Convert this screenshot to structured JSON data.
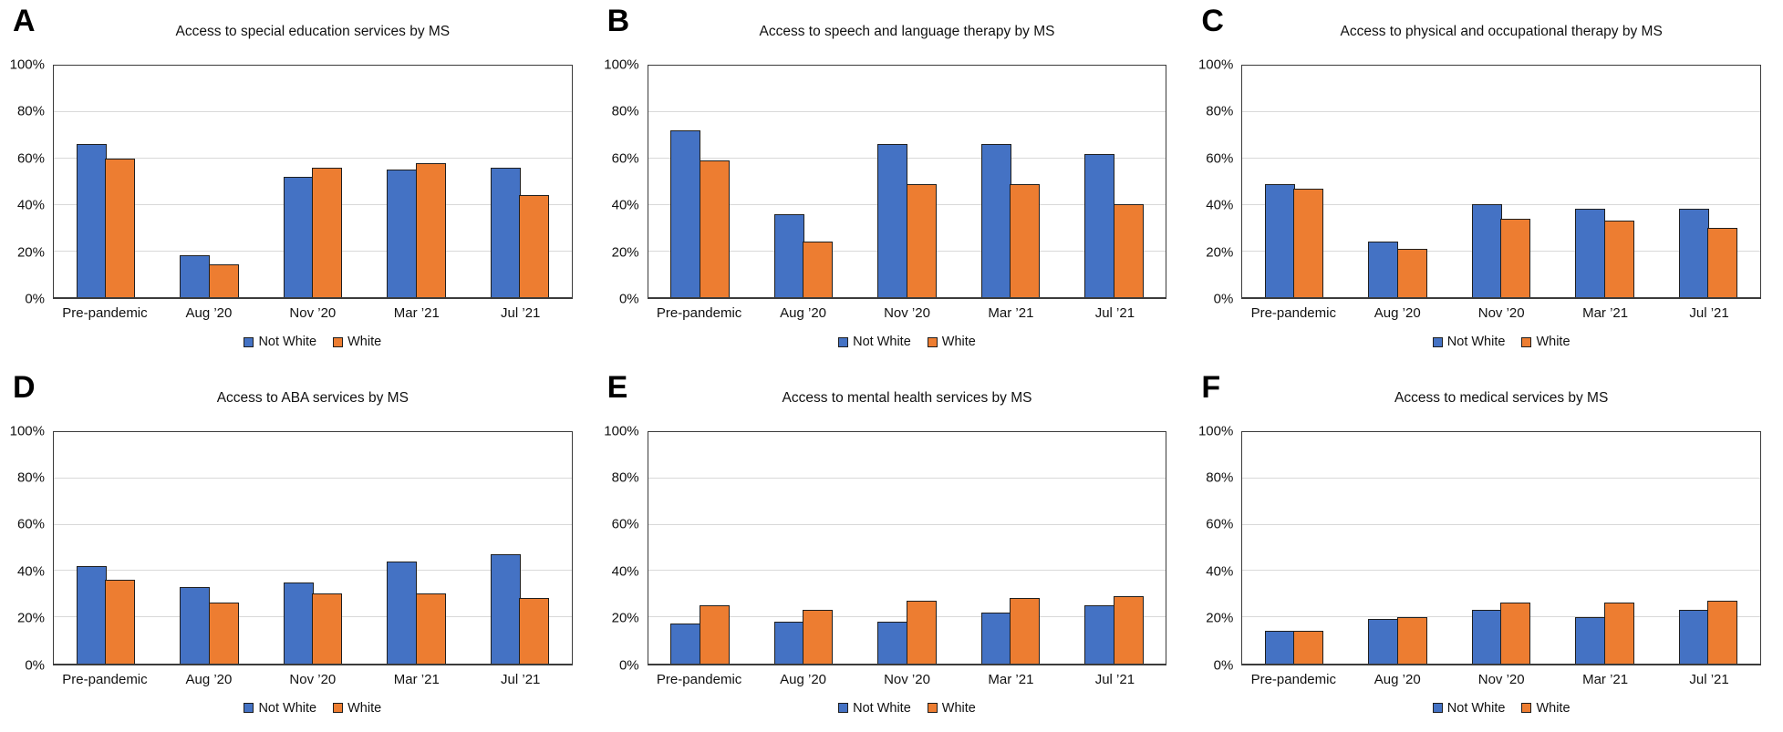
{
  "figure": {
    "layout": "3x2-grid-of-bar-charts",
    "colors": {
      "not_white": "#4472C4",
      "white": "#ED7D31",
      "bar_outline": "#1f1f1f",
      "gridline": "#d9d9d9"
    }
  },
  "chart_data": [
    {
      "panel": "A",
      "type": "bar",
      "title": "Access to special education services by MS",
      "categories": [
        "Pre-pandemic",
        "Aug ’20",
        "Nov ’20",
        "Mar ’21",
        "Jul ’21"
      ],
      "series": [
        {
          "name": "Not White",
          "color": "#4472C4",
          "values": [
            66,
            18,
            52,
            55,
            56
          ]
        },
        {
          "name": "White",
          "color": "#ED7D31",
          "values": [
            60,
            14,
            56,
            58,
            44
          ]
        }
      ],
      "ylim": [
        0,
        100
      ],
      "yticks": [
        0,
        20,
        40,
        60,
        80,
        100
      ],
      "ytick_labels": [
        "0%",
        "20%",
        "40%",
        "60%",
        "80%",
        "100%"
      ],
      "grid": true,
      "legend_position": "bottom"
    },
    {
      "panel": "B",
      "type": "bar",
      "title": "Access to speech and language therapy by MS",
      "categories": [
        "Pre-pandemic",
        "Aug ’20",
        "Nov ’20",
        "Mar ’21",
        "Jul ’21"
      ],
      "series": [
        {
          "name": "Not White",
          "color": "#4472C4",
          "values": [
            72,
            36,
            66,
            66,
            62
          ]
        },
        {
          "name": "White",
          "color": "#ED7D31",
          "values": [
            59,
            24,
            49,
            49,
            40
          ]
        }
      ],
      "ylim": [
        0,
        100
      ],
      "yticks": [
        0,
        20,
        40,
        60,
        80,
        100
      ],
      "ytick_labels": [
        "0%",
        "20%",
        "40%",
        "60%",
        "80%",
        "100%"
      ],
      "grid": true,
      "legend_position": "bottom"
    },
    {
      "panel": "C",
      "type": "bar",
      "title": "Access to physical and occupational therapy by MS",
      "categories": [
        "Pre-pandemic",
        "Aug ’20",
        "Nov ’20",
        "Mar ’21",
        "Jul ’21"
      ],
      "series": [
        {
          "name": "Not White",
          "color": "#4472C4",
          "values": [
            49,
            24,
            40,
            38,
            38
          ]
        },
        {
          "name": "White",
          "color": "#ED7D31",
          "values": [
            47,
            21,
            34,
            33,
            30
          ]
        }
      ],
      "ylim": [
        0,
        100
      ],
      "yticks": [
        0,
        20,
        40,
        60,
        80,
        100
      ],
      "ytick_labels": [
        "0%",
        "20%",
        "40%",
        "60%",
        "80%",
        "100%"
      ],
      "grid": true,
      "legend_position": "bottom"
    },
    {
      "panel": "D",
      "type": "bar",
      "title": "Access to ABA services by MS",
      "categories": [
        "Pre-pandemic",
        "Aug ’20",
        "Nov ’20",
        "Mar ’21",
        "Jul ’21"
      ],
      "series": [
        {
          "name": "Not White",
          "color": "#4472C4",
          "values": [
            42,
            33,
            35,
            44,
            47
          ]
        },
        {
          "name": "White",
          "color": "#ED7D31",
          "values": [
            36,
            26,
            30,
            30,
            28
          ]
        }
      ],
      "ylim": [
        0,
        100
      ],
      "yticks": [
        0,
        20,
        40,
        60,
        80,
        100
      ],
      "ytick_labels": [
        "0%",
        "20%",
        "40%",
        "60%",
        "80%",
        "100%"
      ],
      "grid": true,
      "legend_position": "bottom"
    },
    {
      "panel": "E",
      "type": "bar",
      "title": "Access to mental health services by MS",
      "categories": [
        "Pre-pandemic",
        "Aug ’20",
        "Nov ’20",
        "Mar ’21",
        "Jul ’21"
      ],
      "series": [
        {
          "name": "Not White",
          "color": "#4472C4",
          "values": [
            17,
            18,
            18,
            22,
            25
          ]
        },
        {
          "name": "White",
          "color": "#ED7D31",
          "values": [
            25,
            23,
            27,
            28,
            29
          ]
        }
      ],
      "ylim": [
        0,
        100
      ],
      "yticks": [
        0,
        20,
        40,
        60,
        80,
        100
      ],
      "ytick_labels": [
        "0%",
        "20%",
        "40%",
        "60%",
        "80%",
        "100%"
      ],
      "grid": true,
      "legend_position": "bottom"
    },
    {
      "panel": "F",
      "type": "bar",
      "title": "Access to medical services by MS",
      "categories": [
        "Pre-pandemic",
        "Aug ’20",
        "Nov ’20",
        "Mar ’21",
        "Jul ’21"
      ],
      "series": [
        {
          "name": "Not White",
          "color": "#4472C4",
          "values": [
            14,
            19,
            23,
            20,
            23
          ]
        },
        {
          "name": "White",
          "color": "#ED7D31",
          "values": [
            14,
            20,
            26,
            26,
            27
          ]
        }
      ],
      "ylim": [
        0,
        100
      ],
      "yticks": [
        0,
        20,
        40,
        60,
        80,
        100
      ],
      "ytick_labels": [
        "0%",
        "20%",
        "40%",
        "60%",
        "80%",
        "100%"
      ],
      "grid": true,
      "legend_position": "bottom"
    }
  ]
}
